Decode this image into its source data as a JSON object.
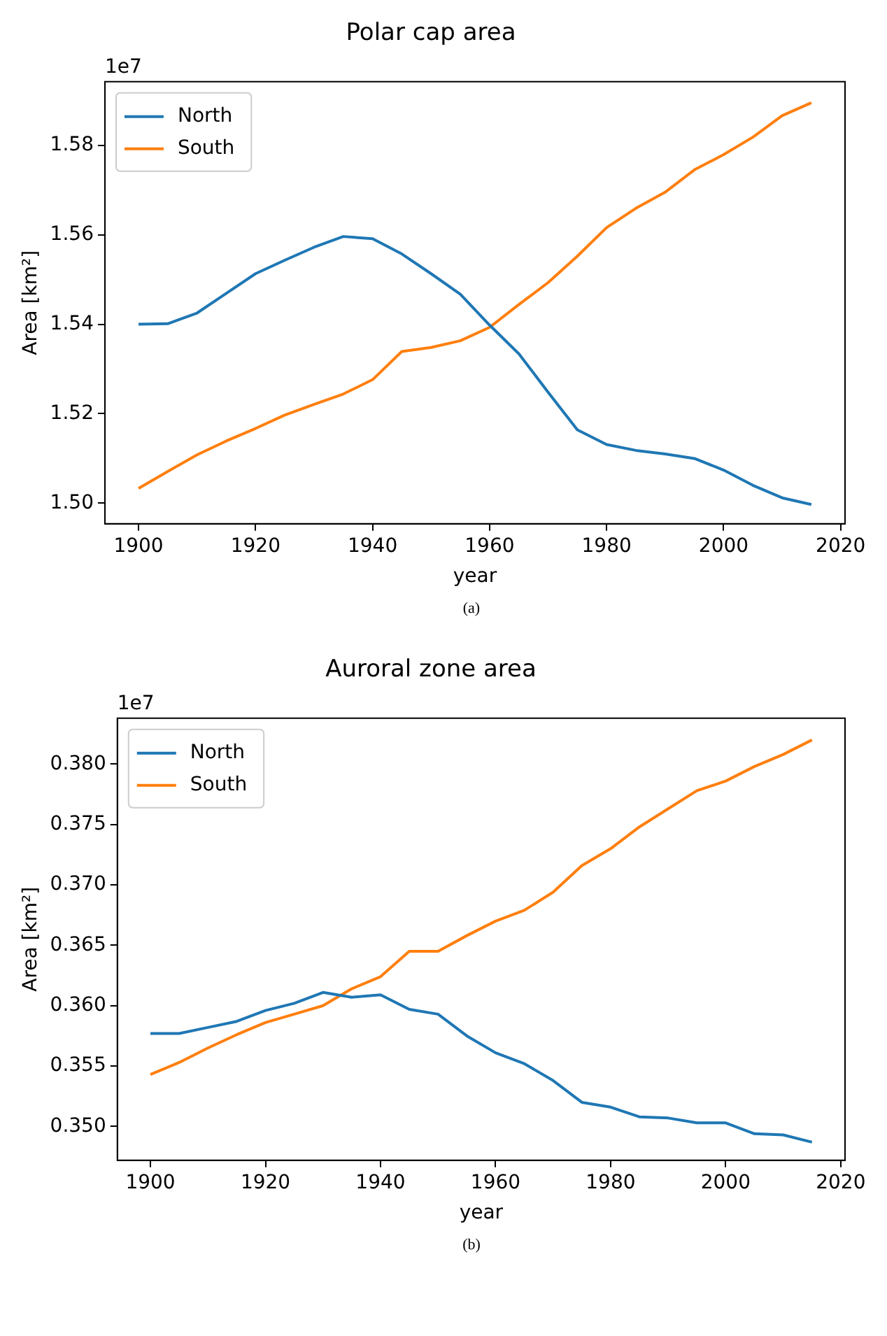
{
  "chart_data": [
    {
      "type": "line",
      "title": "Polar cap area",
      "xlabel": "year",
      "ylabel": "Area [km²]",
      "annotations": [
        "1e7",
        "(a)"
      ],
      "x": [
        1900,
        1905,
        1910,
        1915,
        1920,
        1925,
        1930,
        1935,
        1940,
        1945,
        1950,
        1955,
        1960,
        1965,
        1970,
        1975,
        1980,
        1985,
        1990,
        1995,
        2000,
        2005,
        2010,
        2015
      ],
      "series": [
        {
          "name": "North",
          "color": "#1f77b4",
          "values": [
            1.54,
            1.5401,
            1.5425,
            1.5469,
            1.5513,
            1.5543,
            1.5572,
            1.5596,
            1.5591,
            1.5557,
            1.5513,
            1.5467,
            1.5398,
            1.5334,
            1.5248,
            1.5164,
            1.5131,
            1.5118,
            1.511,
            1.51,
            1.5074,
            1.504,
            1.5012,
            1.4997
          ]
        },
        {
          "name": "South",
          "color": "#ff7f0e",
          "values": [
            1.5033,
            1.5071,
            1.5108,
            1.5139,
            1.5167,
            1.5197,
            1.5221,
            1.5244,
            1.5276,
            1.5339,
            1.5348,
            1.5363,
            1.5393,
            1.5444,
            1.5493,
            1.5552,
            1.5616,
            1.5659,
            1.5695,
            1.5745,
            1.5779,
            1.5818,
            1.5866,
            1.5895
          ]
        }
      ],
      "xlim": [
        1894.25,
        2020.75
      ],
      "xticks": [
        1900,
        1920,
        1940,
        1960,
        1980,
        2000,
        2020
      ],
      "ylim": [
        1.4954,
        1.5942
      ],
      "yticks": [
        {
          "value": 1.5,
          "label": "1.50"
        },
        {
          "value": 1.52,
          "label": "1.52"
        },
        {
          "value": 1.54,
          "label": "1.54"
        },
        {
          "value": 1.56,
          "label": "1.56"
        },
        {
          "value": 1.58,
          "label": "1.58"
        }
      ],
      "grid": false,
      "legend": "top left",
      "marker": "none",
      "line_style": "solid"
    },
    {
      "type": "line",
      "title": "Auroral zone area",
      "xlabel": "year",
      "ylabel": "Area [km²]",
      "annotations": [
        "1e7",
        "(b)"
      ],
      "x": [
        1900,
        1905,
        1910,
        1915,
        1920,
        1925,
        1930,
        1935,
        1940,
        1945,
        1950,
        1955,
        1960,
        1965,
        1970,
        1975,
        1980,
        1985,
        1990,
        1995,
        2000,
        2005,
        2010,
        2015
      ],
      "series": [
        {
          "name": "North",
          "color": "#1f77b4",
          "values": [
            0.3577,
            0.3577,
            0.3582,
            0.3587,
            0.3596,
            0.3602,
            0.3611,
            0.3607,
            0.3609,
            0.3597,
            0.3593,
            0.3575,
            0.3561,
            0.3552,
            0.3538,
            0.352,
            0.3516,
            0.3508,
            0.3507,
            0.3503,
            0.3503,
            0.3494,
            0.3493,
            0.3487
          ]
        },
        {
          "name": "South",
          "color": "#ff7f0e",
          "values": [
            0.3543,
            0.3553,
            0.3565,
            0.3576,
            0.3586,
            0.3593,
            0.36,
            0.3614,
            0.3624,
            0.3645,
            0.3645,
            0.3658,
            0.367,
            0.3679,
            0.3694,
            0.3716,
            0.373,
            0.3748,
            0.3763,
            0.3778,
            0.3786,
            0.3798,
            0.3808,
            0.382
          ]
        }
      ],
      "xlim": [
        1894.25,
        2020.75
      ],
      "xticks": [
        1900,
        1920,
        1940,
        1960,
        1980,
        2000,
        2020
      ],
      "ylim": [
        0.3472,
        0.3838
      ],
      "yticks": [
        {
          "value": 0.35,
          "label": "0.350"
        },
        {
          "value": 0.355,
          "label": "0.355"
        },
        {
          "value": 0.36,
          "label": "0.360"
        },
        {
          "value": 0.365,
          "label": "0.365"
        },
        {
          "value": 0.37,
          "label": "0.370"
        },
        {
          "value": 0.375,
          "label": "0.375"
        },
        {
          "value": 0.38,
          "label": "0.380"
        }
      ],
      "grid": false,
      "legend": "top left",
      "marker": "none",
      "line_style": "solid"
    }
  ]
}
